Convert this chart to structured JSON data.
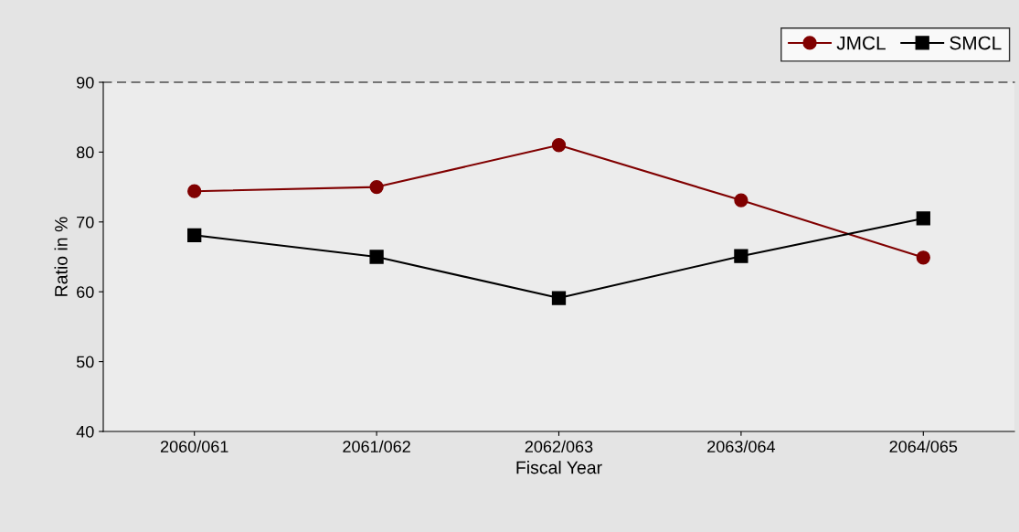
{
  "chart_data": {
    "type": "line",
    "xlabel": "Fiscal Year",
    "ylabel": "Ratio in %",
    "categories": [
      "2060/061",
      "2061/062",
      "2062/063",
      "2063/064",
      "2064/065"
    ],
    "series": [
      {
        "name": "JMCL",
        "color": "#800000",
        "marker": "circle",
        "values": [
          74.4,
          75.0,
          81.0,
          73.1,
          64.9
        ]
      },
      {
        "name": "SMCL",
        "color": "#000000",
        "marker": "square",
        "values": [
          68.1,
          65.0,
          59.1,
          65.1,
          70.5
        ]
      }
    ],
    "ylim": [
      40,
      90
    ],
    "yticks": [
      40,
      50,
      60,
      70,
      80,
      90
    ],
    "grid": false,
    "legend": "top right"
  }
}
